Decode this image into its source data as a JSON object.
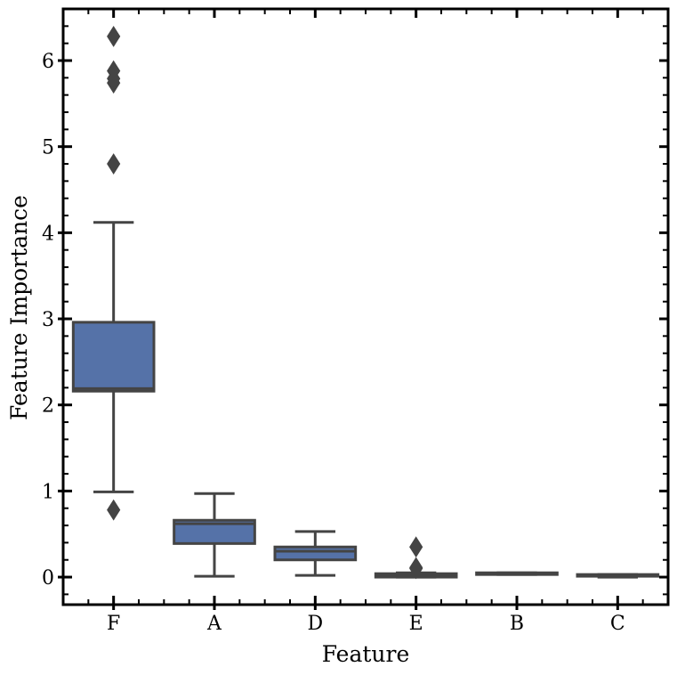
{
  "chart_data": {
    "type": "box",
    "title": "",
    "xlabel": "Feature",
    "ylabel": "Feature Importance",
    "ylim": [
      -0.32,
      6.6
    ],
    "yticks": [
      0,
      1,
      2,
      3,
      4,
      5,
      6
    ],
    "grid": false,
    "box_color": "#5572a8",
    "edge_color": "#444444",
    "categories": [
      "F",
      "A",
      "D",
      "E",
      "B",
      "C"
    ],
    "boxes": [
      {
        "label": "F",
        "whisker_low": 0.99,
        "q1": 2.16,
        "median": 2.19,
        "q3": 2.96,
        "whisker_high": 4.12,
        "outliers": [
          0.78,
          4.8,
          5.74,
          5.79,
          5.88,
          6.28
        ]
      },
      {
        "label": "A",
        "whisker_low": 0.01,
        "q1": 0.39,
        "median": 0.62,
        "q3": 0.66,
        "whisker_high": 0.97,
        "outliers": []
      },
      {
        "label": "D",
        "whisker_low": 0.02,
        "q1": 0.2,
        "median": 0.3,
        "q3": 0.35,
        "whisker_high": 0.53,
        "outliers": []
      },
      {
        "label": "E",
        "whisker_low": 0.0,
        "q1": 0.0,
        "median": 0.02,
        "q3": 0.04,
        "whisker_high": 0.05,
        "outliers": [
          0.1,
          0.11,
          0.35
        ]
      },
      {
        "label": "B",
        "whisker_low": 0.03,
        "q1": 0.03,
        "median": 0.04,
        "q3": 0.05,
        "whisker_high": 0.05,
        "outliers": []
      },
      {
        "label": "C",
        "whisker_low": 0.0,
        "q1": 0.01,
        "median": 0.02,
        "q3": 0.03,
        "whisker_high": 0.03,
        "outliers": []
      }
    ]
  }
}
